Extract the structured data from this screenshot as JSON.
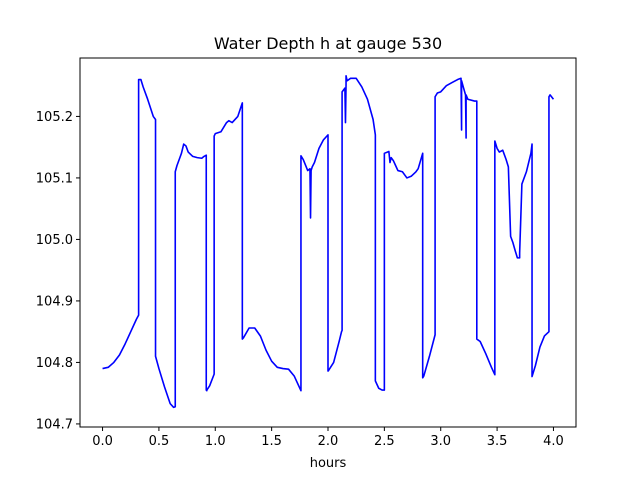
{
  "chart_data": {
    "type": "line",
    "title": "Water Depth h at gauge 530",
    "xlabel": "hours",
    "ylabel": "",
    "xlim": [
      -0.2,
      4.2
    ],
    "ylim": [
      104.695,
      105.295
    ],
    "xticks": [
      0.0,
      0.5,
      1.0,
      1.5,
      2.0,
      2.5,
      3.0,
      3.5,
      4.0
    ],
    "xtick_labels": [
      "0.0",
      "0.5",
      "1.0",
      "1.5",
      "2.0",
      "2.5",
      "3.0",
      "3.5",
      "4.0"
    ],
    "yticks": [
      104.7,
      104.8,
      104.9,
      105.0,
      105.1,
      105.2
    ],
    "ytick_labels": [
      "104.7",
      "104.8",
      "104.9",
      "105.0",
      "105.1",
      "105.2"
    ],
    "grid": false,
    "series": [
      {
        "name": "",
        "color": "#0000ff",
        "x": [
          0.0,
          0.05,
          0.1,
          0.15,
          0.2,
          0.25,
          0.3,
          0.32,
          0.32,
          0.34,
          0.36,
          0.4,
          0.45,
          0.47,
          0.47,
          0.5,
          0.55,
          0.6,
          0.63,
          0.645,
          0.645,
          0.66,
          0.68,
          0.7,
          0.72,
          0.74,
          0.76,
          0.8,
          0.84,
          0.88,
          0.9,
          0.92,
          0.92,
          0.925,
          0.925,
          0.95,
          0.99,
          0.99,
          1.0,
          1.05,
          1.1,
          1.12,
          1.15,
          1.2,
          1.24,
          1.24,
          1.25,
          1.3,
          1.35,
          1.4,
          1.45,
          1.5,
          1.55,
          1.6,
          1.65,
          1.7,
          1.76,
          1.76,
          1.78,
          1.82,
          1.84,
          1.845,
          1.85,
          1.86,
          1.88,
          1.92,
          1.96,
          2.0,
          2.0,
          2.005,
          2.05,
          2.1,
          2.12,
          2.125,
          2.125,
          2.15,
          2.155,
          2.16,
          2.16,
          2.17,
          2.2,
          2.25,
          2.3,
          2.35,
          2.4,
          2.42,
          2.42,
          2.45,
          2.48,
          2.5,
          2.5,
          2.54,
          2.55,
          2.56,
          2.58,
          2.6,
          2.62,
          2.66,
          2.7,
          2.74,
          2.78,
          2.8,
          2.84,
          2.84,
          2.85,
          2.9,
          2.95,
          2.95,
          2.97,
          3.0,
          3.05,
          3.1,
          3.15,
          3.18,
          3.185,
          3.185,
          3.2,
          3.22,
          3.225,
          3.225,
          3.24,
          3.3,
          3.32,
          3.32,
          3.35,
          3.4,
          3.45,
          3.48,
          3.48,
          3.5,
          3.52,
          3.55,
          3.56,
          3.58,
          3.6,
          3.62,
          3.64,
          3.66,
          3.68,
          3.7,
          3.7,
          3.72,
          3.76,
          3.8,
          3.81,
          3.81,
          3.84,
          3.88,
          3.92,
          3.96,
          3.96,
          3.97,
          4.0
        ],
        "y": [
          104.79,
          104.792,
          104.8,
          104.812,
          104.83,
          104.85,
          104.87,
          104.877,
          105.26,
          105.26,
          105.248,
          105.228,
          105.2,
          105.195,
          104.81,
          104.79,
          104.76,
          104.733,
          104.727,
          104.728,
          105.11,
          105.12,
          105.13,
          105.14,
          105.155,
          105.152,
          105.142,
          105.135,
          105.133,
          105.132,
          105.135,
          105.137,
          104.755,
          104.754,
          104.755,
          104.762,
          104.781,
          105.168,
          105.172,
          105.175,
          105.19,
          105.193,
          105.19,
          105.2,
          105.222,
          104.838,
          104.84,
          104.856,
          104.856,
          104.843,
          104.82,
          104.802,
          104.792,
          104.79,
          104.789,
          104.778,
          104.754,
          105.136,
          105.13,
          105.112,
          105.115,
          105.035,
          105.112,
          105.118,
          105.125,
          105.148,
          105.162,
          105.17,
          104.786,
          104.787,
          104.8,
          104.835,
          104.85,
          104.852,
          105.24,
          105.246,
          105.19,
          105.252,
          105.266,
          105.258,
          105.262,
          105.262,
          105.248,
          105.228,
          105.195,
          105.17,
          104.77,
          104.758,
          104.755,
          104.755,
          105.14,
          105.143,
          105.125,
          105.133,
          105.128,
          105.12,
          105.112,
          105.11,
          105.1,
          105.103,
          105.11,
          105.115,
          105.14,
          104.775,
          104.778,
          104.81,
          104.845,
          105.232,
          105.238,
          105.24,
          105.25,
          105.255,
          105.26,
          105.262,
          105.178,
          105.258,
          105.248,
          105.235,
          105.165,
          105.235,
          105.228,
          105.225,
          105.225,
          104.838,
          104.834,
          104.814,
          104.792,
          104.78,
          105.16,
          105.148,
          105.142,
          105.145,
          105.14,
          105.13,
          105.118,
          105.005,
          104.995,
          104.982,
          104.97,
          104.97,
          104.978,
          105.09,
          105.11,
          105.14,
          105.155,
          104.777,
          104.795,
          104.825,
          104.843,
          104.85,
          105.232,
          105.235,
          105.228
        ]
      }
    ]
  }
}
